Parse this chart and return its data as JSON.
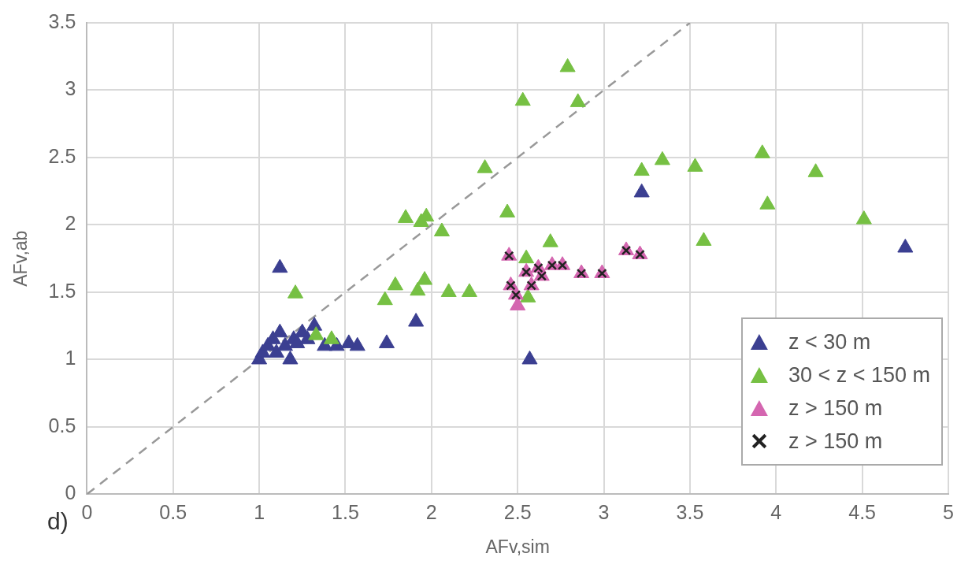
{
  "chart_data": {
    "type": "scatter",
    "xlabel": "AFv,sim",
    "ylabel": "AFv,ab",
    "annotations": [
      "d)"
    ],
    "xlim": [
      0,
      5
    ],
    "xticks": [
      0,
      0.5,
      1,
      1.5,
      2,
      2.5,
      3,
      3.5,
      4,
      4.5,
      5
    ],
    "ylim": [
      0,
      3.5
    ],
    "yticks": [
      0,
      0.5,
      1,
      1.5,
      2,
      2.5,
      3,
      3.5
    ],
    "grid": true,
    "legend": "bottom right",
    "series": [
      {
        "name": "z < 30 m",
        "color": "#3b3f91",
        "marker": "triangle",
        "x": [
          1.0,
          1.02,
          1.05,
          1.08,
          1.1,
          1.12,
          1.15,
          1.18,
          1.2,
          1.22,
          1.25,
          1.28,
          1.32,
          1.38,
          1.45,
          1.52,
          1.57,
          1.74,
          1.91,
          2.57,
          1.12,
          3.22,
          4.75
        ],
        "values": [
          1.0,
          1.05,
          1.1,
          1.15,
          1.05,
          1.2,
          1.1,
          1.0,
          1.15,
          1.12,
          1.2,
          1.15,
          1.25,
          1.1,
          1.1,
          1.12,
          1.1,
          1.12,
          1.28,
          1.0,
          1.68,
          2.24,
          1.83
        ]
      },
      {
        "name": "30 < z < 150 m",
        "color": "#76c043",
        "marker": "triangle",
        "x": [
          1.21,
          1.33,
          1.42,
          1.73,
          1.79,
          1.85,
          1.92,
          1.94,
          1.96,
          1.97,
          2.06,
          2.1,
          2.22,
          2.31,
          2.44,
          2.53,
          2.55,
          2.56,
          2.69,
          2.79,
          2.85,
          3.22,
          3.34,
          3.53,
          3.58,
          3.92,
          3.95,
          4.23,
          4.51
        ],
        "values": [
          1.49,
          1.18,
          1.15,
          1.44,
          1.55,
          2.05,
          1.51,
          2.02,
          1.59,
          2.06,
          1.95,
          1.5,
          1.5,
          2.42,
          2.09,
          2.92,
          1.75,
          1.46,
          1.87,
          3.17,
          2.91,
          2.4,
          2.48,
          2.43,
          1.88,
          2.53,
          2.15,
          2.39,
          2.04
        ]
      },
      {
        "name": "z > 150 m",
        "color": "#d466b0",
        "marker": "triangle",
        "x": [
          2.45,
          2.46,
          2.49,
          2.5,
          2.55,
          2.58,
          2.62,
          2.64,
          2.7,
          2.76,
          2.87,
          2.99,
          3.13,
          3.21
        ],
        "values": [
          1.77,
          1.55,
          1.48,
          1.4,
          1.65,
          1.55,
          1.68,
          1.62,
          1.7,
          1.7,
          1.64,
          1.64,
          1.81,
          1.78
        ]
      },
      {
        "name": "z > 150 m",
        "color": "#222222",
        "marker": "cross",
        "x": [
          2.45,
          2.46,
          2.49,
          2.55,
          2.58,
          2.62,
          2.64,
          2.7,
          2.76,
          2.87,
          2.99,
          3.13,
          3.21
        ],
        "values": [
          1.77,
          1.55,
          1.48,
          1.65,
          1.55,
          1.68,
          1.62,
          1.7,
          1.7,
          1.64,
          1.64,
          1.81,
          1.78
        ]
      },
      {
        "type": "line",
        "color": "#999999",
        "line_style": "dashed",
        "marker": "none",
        "x": [
          0,
          3.5
        ],
        "values": [
          0,
          3.5
        ]
      }
    ]
  }
}
